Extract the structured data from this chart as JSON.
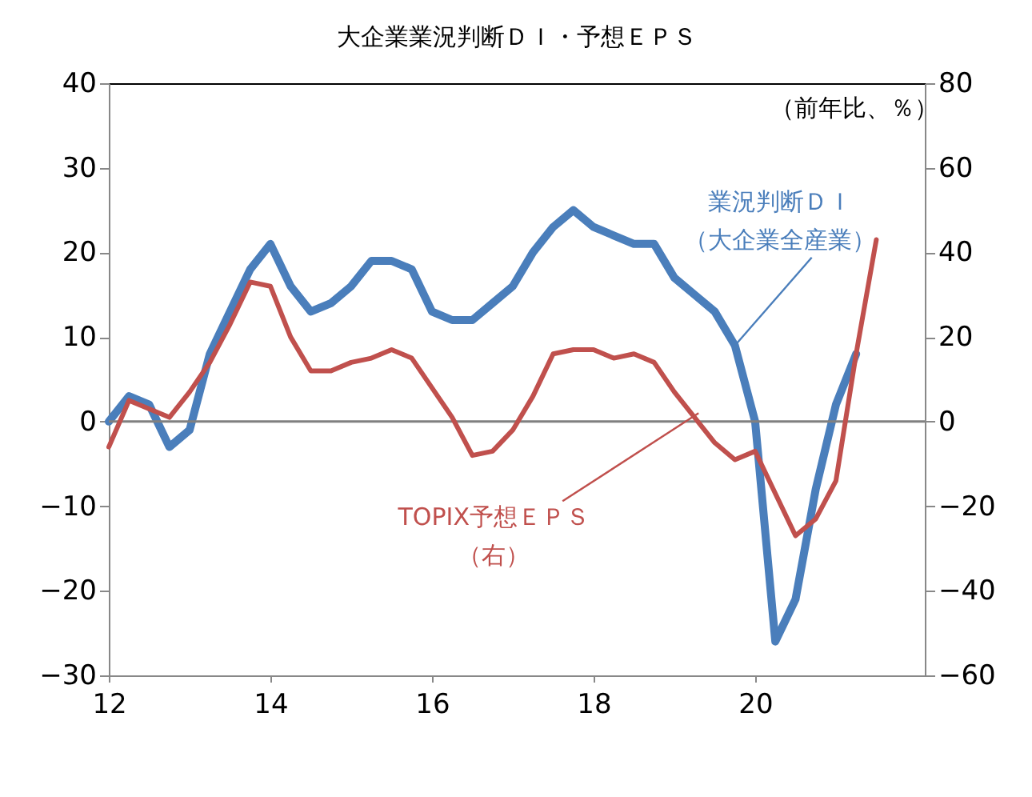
{
  "chart_data": {
    "type": "line",
    "title": "大企業業況判断ＤＩ・予想ＥＰＳ",
    "y2label": "（前年比、％）",
    "xlim": [
      12,
      22.1
    ],
    "xticks": [
      12,
      14,
      16,
      18,
      20
    ],
    "ylim": [
      -30,
      40
    ],
    "yticks": [
      -30,
      -20,
      -10,
      0,
      10,
      20,
      30,
      40
    ],
    "y2lim": [
      -60,
      80
    ],
    "y2ticks": [
      -60,
      -40,
      -20,
      0,
      20,
      40,
      60,
      80
    ],
    "series": [
      {
        "color": "#4a7ebb",
        "x": [
          12,
          12.25,
          12.5,
          12.75,
          13,
          13.25,
          13.5,
          13.75,
          14,
          14.25,
          14.5,
          14.75,
          15,
          15.25,
          15.5,
          15.75,
          16,
          16.25,
          16.5,
          16.75,
          17,
          17.25,
          17.5,
          17.75,
          18,
          18.25,
          18.5,
          18.75,
          19,
          19.25,
          19.5,
          19.75,
          20,
          20.25,
          20.5,
          20.75,
          21,
          21.25
        ],
        "values": [
          0,
          3,
          2,
          -3,
          -1,
          8,
          13,
          18,
          21,
          16,
          13,
          14,
          16,
          19,
          19,
          18,
          13,
          12,
          12,
          14,
          16,
          20,
          23,
          25,
          23,
          22,
          21,
          21,
          17,
          15,
          13,
          9,
          0,
          -26,
          -21,
          -8,
          2,
          8
        ]
      },
      {
        "color": "#c0504d",
        "axis": "y2",
        "x": [
          12,
          12.25,
          12.5,
          12.75,
          13,
          13.25,
          13.5,
          13.75,
          14,
          14.25,
          14.5,
          14.75,
          15,
          15.25,
          15.5,
          15.75,
          16,
          16.25,
          16.5,
          16.75,
          17,
          17.25,
          17.5,
          17.75,
          18,
          18.25,
          18.5,
          18.75,
          19,
          19.25,
          19.5,
          19.75,
          20,
          20.25,
          20.5,
          20.75,
          21,
          21.25,
          21.5
        ],
        "values": [
          -6,
          5,
          3,
          1,
          7,
          14,
          23,
          33,
          32,
          20,
          12,
          12,
          14,
          15,
          17,
          15,
          8,
          1,
          -8,
          -7,
          -2,
          6,
          16,
          17,
          17,
          15,
          16,
          14,
          7,
          1,
          -5,
          -9,
          -7,
          -17,
          -27,
          -23,
          -14,
          16,
          43
        ]
      }
    ],
    "ref_lines": [
      {
        "axis": "y",
        "value": 0,
        "color": "#808080"
      }
    ],
    "annotations": [
      {
        "text": "業況判断ＤＩ（大企業全産業）",
        "x": 19.75,
        "y": 9
      },
      {
        "text": "TOPIX予想ＥＰＳ（右）",
        "x": 19.3,
        "y": 1
      }
    ],
    "grid": false
  }
}
